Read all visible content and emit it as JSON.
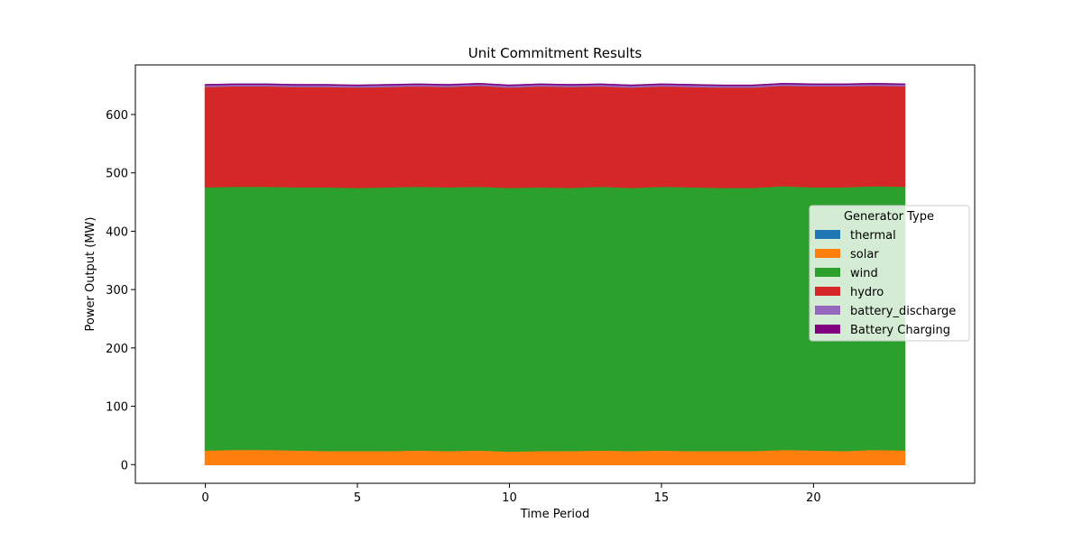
{
  "chart_data": {
    "type": "area",
    "stacked": true,
    "title": "Unit Commitment Results",
    "xlabel": "Time Period",
    "ylabel": "Power Output (MW)",
    "xlim": [
      -2.3,
      25.3
    ],
    "ylim": [
      -32,
      685
    ],
    "xticks": [
      0,
      5,
      10,
      15,
      20
    ],
    "yticks": [
      0,
      100,
      200,
      300,
      400,
      500,
      600
    ],
    "grid": false,
    "legend": {
      "title": "Generator Type",
      "placement": "center-right"
    },
    "x": [
      0,
      1,
      2,
      3,
      4,
      5,
      6,
      7,
      8,
      9,
      10,
      11,
      12,
      13,
      14,
      15,
      16,
      17,
      18,
      19,
      20,
      21,
      22,
      23
    ],
    "series": [
      {
        "name": "thermal",
        "color": "#1f77b4",
        "values": [
          0,
          0,
          0,
          0,
          0,
          0,
          0,
          0,
          0,
          0,
          0,
          0,
          0,
          0,
          0,
          0,
          0,
          0,
          0,
          0,
          0,
          0,
          0,
          0
        ]
      },
      {
        "name": "solar",
        "color": "#ff7f0e",
        "values": [
          25,
          26,
          26,
          25,
          24,
          24,
          24,
          25,
          24,
          25,
          23,
          24,
          24,
          25,
          24,
          25,
          24,
          24,
          24,
          26,
          25,
          24,
          26,
          25
        ]
      },
      {
        "name": "wind",
        "color": "#2ca02c",
        "values": [
          451,
          451,
          451,
          451,
          452,
          451,
          452,
          452,
          452,
          452,
          452,
          452,
          451,
          452,
          451,
          452,
          452,
          451,
          451,
          452,
          451,
          452,
          452,
          452
        ]
      },
      {
        "name": "hydro",
        "color": "#d62728",
        "values": [
          172,
          172,
          172,
          172,
          172,
          172,
          172,
          172,
          172,
          173,
          172,
          173,
          173,
          172,
          172,
          172,
          172,
          172,
          172,
          172,
          173,
          173,
          172,
          172
        ]
      },
      {
        "name": "battery_discharge",
        "color": "#9467bd",
        "values": [
          3,
          3,
          3,
          3,
          3,
          3,
          3,
          3,
          3,
          3,
          3,
          3,
          3,
          3,
          3,
          3,
          3,
          3,
          3,
          3,
          3,
          3,
          3,
          3
        ]
      },
      {
        "name": "Battery Charging",
        "color": "#800080",
        "values": [
          0,
          0,
          0,
          0,
          0,
          0,
          0,
          0,
          0,
          0,
          0,
          0,
          0,
          0,
          0,
          0,
          0,
          0,
          0,
          0,
          0,
          0,
          0,
          0
        ]
      }
    ]
  }
}
